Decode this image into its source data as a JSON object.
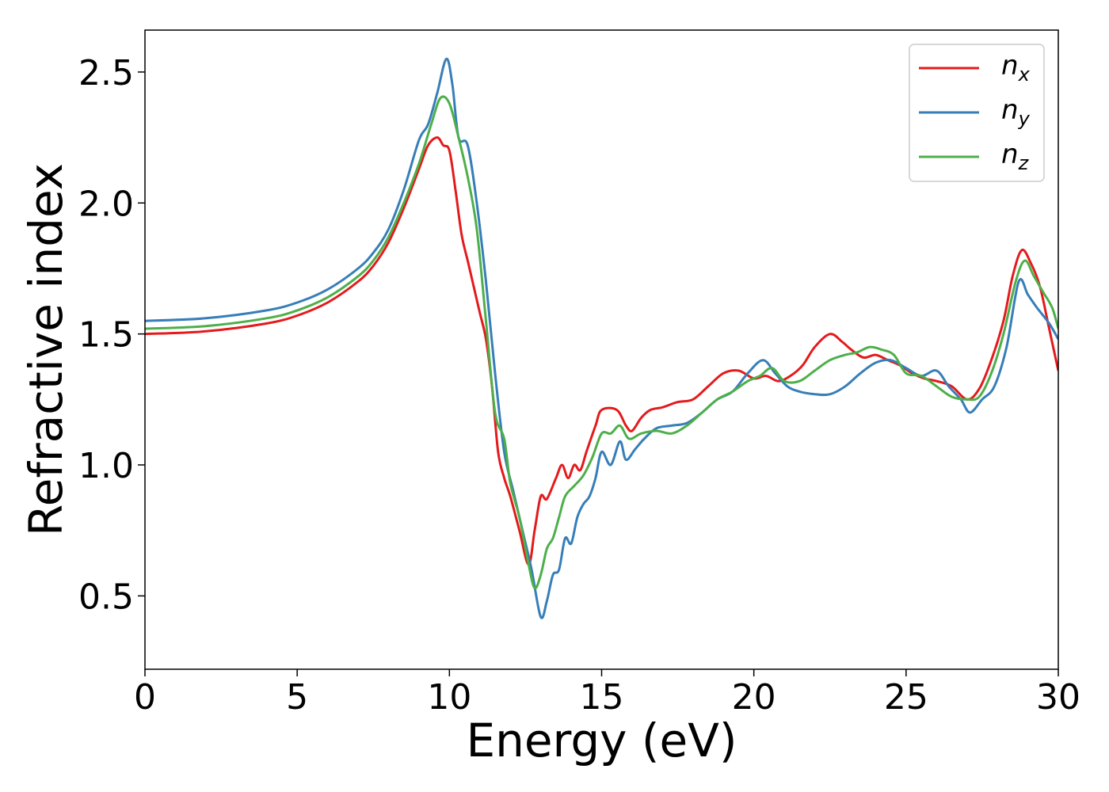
{
  "chart_data": {
    "type": "line",
    "xlabel": "Energy (eV)",
    "ylabel": "Refractive index",
    "xlim": [
      0,
      30
    ],
    "ylim": [
      0.22,
      2.66
    ],
    "xticks": [
      0,
      5,
      10,
      15,
      20,
      25,
      30
    ],
    "xtick_labels": [
      "0",
      "5",
      "10",
      "15",
      "20",
      "25",
      "30"
    ],
    "yticks": [
      0.5,
      1.0,
      1.5,
      2.0,
      2.5
    ],
    "ytick_labels": [
      "0.5",
      "1.0",
      "1.5",
      "2.0",
      "2.5"
    ],
    "grid": false,
    "legend_position": "top-right",
    "series": [
      {
        "name": "n",
        "subscript": "x",
        "color": "#e41a1c",
        "points": [
          [
            0,
            1.5
          ],
          [
            2,
            1.51
          ],
          [
            4,
            1.54
          ],
          [
            5,
            1.57
          ],
          [
            6,
            1.62
          ],
          [
            7,
            1.7
          ],
          [
            7.5,
            1.76
          ],
          [
            8,
            1.85
          ],
          [
            8.5,
            1.98
          ],
          [
            9,
            2.13
          ],
          [
            9.3,
            2.22
          ],
          [
            9.6,
            2.25
          ],
          [
            9.8,
            2.22
          ],
          [
            10,
            2.2
          ],
          [
            10.2,
            2.05
          ],
          [
            10.4,
            1.88
          ],
          [
            10.6,
            1.78
          ],
          [
            10.8,
            1.68
          ],
          [
            11.0,
            1.58
          ],
          [
            11.2,
            1.48
          ],
          [
            11.4,
            1.3
          ],
          [
            11.6,
            1.05
          ],
          [
            11.8,
            0.95
          ],
          [
            12.0,
            0.88
          ],
          [
            12.3,
            0.75
          ],
          [
            12.6,
            0.62
          ],
          [
            12.8,
            0.75
          ],
          [
            13.0,
            0.88
          ],
          [
            13.2,
            0.87
          ],
          [
            13.5,
            0.95
          ],
          [
            13.7,
            1.0
          ],
          [
            13.9,
            0.95
          ],
          [
            14.1,
            1.0
          ],
          [
            14.3,
            0.98
          ],
          [
            14.5,
            1.05
          ],
          [
            14.8,
            1.15
          ],
          [
            15.0,
            1.21
          ],
          [
            15.5,
            1.21
          ],
          [
            15.8,
            1.15
          ],
          [
            16.0,
            1.13
          ],
          [
            16.3,
            1.18
          ],
          [
            16.6,
            1.21
          ],
          [
            17.0,
            1.22
          ],
          [
            17.5,
            1.24
          ],
          [
            18.0,
            1.25
          ],
          [
            18.5,
            1.3
          ],
          [
            19.0,
            1.35
          ],
          [
            19.5,
            1.36
          ],
          [
            20.0,
            1.33
          ],
          [
            20.4,
            1.34
          ],
          [
            20.8,
            1.32
          ],
          [
            21.2,
            1.34
          ],
          [
            21.6,
            1.38
          ],
          [
            22.0,
            1.45
          ],
          [
            22.5,
            1.5
          ],
          [
            22.9,
            1.47
          ],
          [
            23.2,
            1.44
          ],
          [
            23.6,
            1.41
          ],
          [
            24.0,
            1.42
          ],
          [
            24.4,
            1.4
          ],
          [
            24.8,
            1.38
          ],
          [
            25.2,
            1.35
          ],
          [
            25.6,
            1.33
          ],
          [
            26.0,
            1.32
          ],
          [
            26.5,
            1.3
          ],
          [
            27.0,
            1.25
          ],
          [
            27.4,
            1.29
          ],
          [
            27.8,
            1.4
          ],
          [
            28.2,
            1.55
          ],
          [
            28.5,
            1.72
          ],
          [
            28.8,
            1.82
          ],
          [
            29.1,
            1.77
          ],
          [
            29.4,
            1.68
          ],
          [
            29.7,
            1.52
          ],
          [
            30.0,
            1.36
          ]
        ]
      },
      {
        "name": "n",
        "subscript": "y",
        "color": "#377eb8",
        "points": [
          [
            0,
            1.55
          ],
          [
            2,
            1.56
          ],
          [
            4,
            1.59
          ],
          [
            5,
            1.62
          ],
          [
            6,
            1.67
          ],
          [
            7,
            1.75
          ],
          [
            7.5,
            1.81
          ],
          [
            8,
            1.9
          ],
          [
            8.5,
            2.05
          ],
          [
            9,
            2.24
          ],
          [
            9.3,
            2.3
          ],
          [
            9.6,
            2.42
          ],
          [
            9.9,
            2.55
          ],
          [
            10.1,
            2.45
          ],
          [
            10.3,
            2.25
          ],
          [
            10.6,
            2.22
          ],
          [
            10.9,
            2.0
          ],
          [
            11.2,
            1.7
          ],
          [
            11.5,
            1.35
          ],
          [
            11.8,
            1.05
          ],
          [
            12.1,
            0.9
          ],
          [
            12.4,
            0.75
          ],
          [
            12.7,
            0.6
          ],
          [
            13.0,
            0.42
          ],
          [
            13.2,
            0.48
          ],
          [
            13.4,
            0.58
          ],
          [
            13.6,
            0.6
          ],
          [
            13.8,
            0.72
          ],
          [
            14.0,
            0.7
          ],
          [
            14.2,
            0.8
          ],
          [
            14.4,
            0.85
          ],
          [
            14.6,
            0.88
          ],
          [
            14.8,
            0.95
          ],
          [
            15.0,
            1.05
          ],
          [
            15.3,
            1.0
          ],
          [
            15.6,
            1.09
          ],
          [
            15.8,
            1.02
          ],
          [
            16.1,
            1.06
          ],
          [
            16.4,
            1.1
          ],
          [
            16.8,
            1.14
          ],
          [
            17.3,
            1.15
          ],
          [
            17.8,
            1.16
          ],
          [
            18.3,
            1.2
          ],
          [
            18.8,
            1.25
          ],
          [
            19.3,
            1.28
          ],
          [
            19.8,
            1.35
          ],
          [
            20.3,
            1.4
          ],
          [
            20.7,
            1.35
          ],
          [
            21.1,
            1.3
          ],
          [
            21.5,
            1.28
          ],
          [
            22.0,
            1.27
          ],
          [
            22.5,
            1.27
          ],
          [
            23.0,
            1.3
          ],
          [
            23.5,
            1.35
          ],
          [
            24.0,
            1.39
          ],
          [
            24.5,
            1.4
          ],
          [
            25.0,
            1.37
          ],
          [
            25.5,
            1.34
          ],
          [
            26.0,
            1.36
          ],
          [
            26.4,
            1.3
          ],
          [
            26.8,
            1.25
          ],
          [
            27.1,
            1.2
          ],
          [
            27.5,
            1.25
          ],
          [
            27.9,
            1.3
          ],
          [
            28.3,
            1.45
          ],
          [
            28.7,
            1.7
          ],
          [
            29.0,
            1.65
          ],
          [
            29.3,
            1.6
          ],
          [
            29.7,
            1.54
          ],
          [
            30.0,
            1.48
          ]
        ]
      },
      {
        "name": "n",
        "subscript": "z",
        "color": "#4daf4a",
        "points": [
          [
            0,
            1.52
          ],
          [
            2,
            1.53
          ],
          [
            4,
            1.56
          ],
          [
            5,
            1.59
          ],
          [
            6,
            1.64
          ],
          [
            7,
            1.72
          ],
          [
            7.5,
            1.78
          ],
          [
            8,
            1.87
          ],
          [
            8.5,
            2.0
          ],
          [
            9,
            2.15
          ],
          [
            9.4,
            2.3
          ],
          [
            9.7,
            2.4
          ],
          [
            10.0,
            2.38
          ],
          [
            10.3,
            2.25
          ],
          [
            10.6,
            2.1
          ],
          [
            10.9,
            1.9
          ],
          [
            11.2,
            1.55
          ],
          [
            11.5,
            1.2
          ],
          [
            11.8,
            1.1
          ],
          [
            12.0,
            0.93
          ],
          [
            12.3,
            0.8
          ],
          [
            12.6,
            0.62
          ],
          [
            12.8,
            0.53
          ],
          [
            13.0,
            0.58
          ],
          [
            13.2,
            0.68
          ],
          [
            13.4,
            0.72
          ],
          [
            13.6,
            0.8
          ],
          [
            13.8,
            0.88
          ],
          [
            14.1,
            0.92
          ],
          [
            14.4,
            0.96
          ],
          [
            14.7,
            1.03
          ],
          [
            15.0,
            1.12
          ],
          [
            15.3,
            1.12
          ],
          [
            15.6,
            1.15
          ],
          [
            15.9,
            1.1
          ],
          [
            16.3,
            1.12
          ],
          [
            16.8,
            1.13
          ],
          [
            17.3,
            1.12
          ],
          [
            17.8,
            1.15
          ],
          [
            18.3,
            1.2
          ],
          [
            18.8,
            1.25
          ],
          [
            19.3,
            1.28
          ],
          [
            19.8,
            1.32
          ],
          [
            20.2,
            1.34
          ],
          [
            20.6,
            1.37
          ],
          [
            21.0,
            1.32
          ],
          [
            21.5,
            1.32
          ],
          [
            22.0,
            1.36
          ],
          [
            22.5,
            1.4
          ],
          [
            23.0,
            1.42
          ],
          [
            23.4,
            1.43
          ],
          [
            23.8,
            1.45
          ],
          [
            24.2,
            1.44
          ],
          [
            24.6,
            1.42
          ],
          [
            25.0,
            1.35
          ],
          [
            25.5,
            1.34
          ],
          [
            26.0,
            1.3
          ],
          [
            26.5,
            1.26
          ],
          [
            27.0,
            1.25
          ],
          [
            27.4,
            1.26
          ],
          [
            27.8,
            1.35
          ],
          [
            28.2,
            1.5
          ],
          [
            28.6,
            1.7
          ],
          [
            28.9,
            1.78
          ],
          [
            29.2,
            1.72
          ],
          [
            29.5,
            1.66
          ],
          [
            29.8,
            1.6
          ],
          [
            30.0,
            1.52
          ]
        ]
      }
    ]
  }
}
